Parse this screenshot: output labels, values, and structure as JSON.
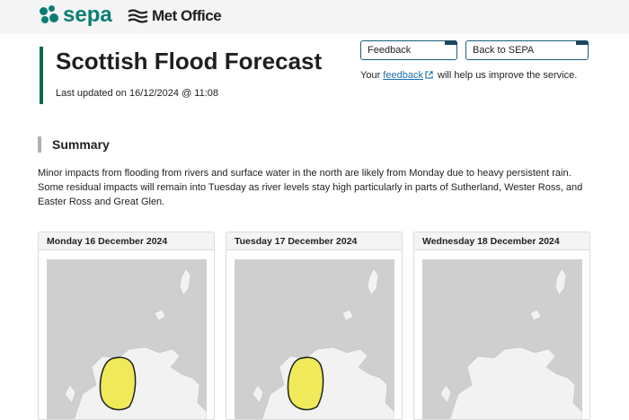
{
  "header": {
    "sepa_logo_text": "sepa",
    "metoffice_logo_text": "Met Office"
  },
  "page": {
    "title": "Scottish Flood Forecast",
    "last_updated": "Last updated on 16/12/2024 @ 11:08"
  },
  "actions": {
    "feedback_label": "Feedback",
    "back_label": "Back to SEPA",
    "note_prefix": "Your ",
    "note_link": "feedback",
    "note_suffix": " will help us improve the service."
  },
  "summary": {
    "heading": "Summary",
    "text": "Minor impacts from flooding from rivers and surface water in the north are likely from Monday due to heavy persistent rain. Some residual impacts will remain into Tuesday as river levels stay high particularly in parts of Sutherland, Wester Ross, and Easter Ross and Great Glen."
  },
  "forecast_days": [
    {
      "label": "Monday 16 December 2024",
      "alert_area": "yellow"
    },
    {
      "label": "Tuesday 17 December 2024",
      "alert_area": "yellow"
    },
    {
      "label": "Wednesday 18 December 2024",
      "alert_area": "none"
    }
  ],
  "colors": {
    "brand_green": "#0a7d72",
    "title_bar": "#0a6b4e",
    "alert_yellow": "#f0ea5a",
    "map_land": "#f2f2f2",
    "map_sea": "#cfcfcf"
  }
}
